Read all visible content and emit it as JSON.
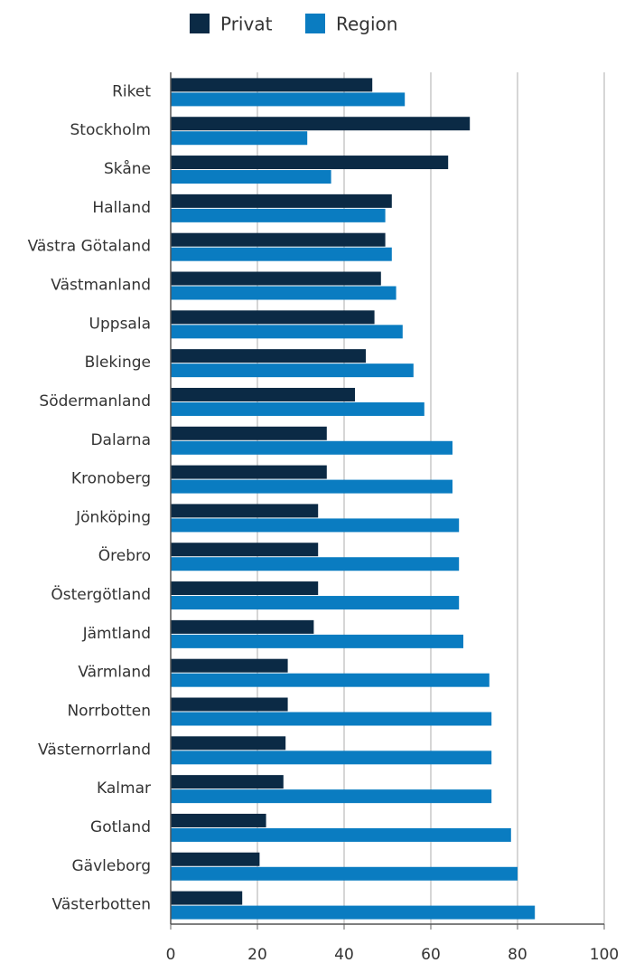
{
  "chart_data": {
    "type": "hbar",
    "categories": [
      "Riket",
      "Stockholm",
      "Skåne",
      "Halland",
      "Västra Götaland",
      "Västmanland",
      "Uppsala",
      "Blekinge",
      "Södermanland",
      "Dalarna",
      "Kronoberg",
      "Jönköping",
      "Örebro",
      "Östergötland",
      "Jämtland",
      "Värmland",
      "Norrbotten",
      "Västernorrland",
      "Kalmar",
      "Gotland",
      "Gävleborg",
      "Västerbotten"
    ],
    "series": [
      {
        "name": "Privat",
        "color": "#0b2a45",
        "values": [
          46.5,
          69,
          64,
          51,
          49.5,
          48.5,
          47,
          45,
          42.5,
          36,
          36,
          34,
          34,
          34,
          33,
          27,
          27,
          26.5,
          26,
          22,
          20.5,
          16.5
        ]
      },
      {
        "name": "Region",
        "color": "#0a7cc1",
        "values": [
          54,
          31.5,
          37,
          49.5,
          51,
          52,
          53.5,
          56,
          58.5,
          65,
          65,
          66.5,
          66.5,
          66.5,
          67.5,
          73.5,
          74,
          74,
          74,
          78.5,
          80,
          84
        ]
      }
    ],
    "xlim": [
      0,
      100
    ],
    "xticks": [
      0,
      20,
      40,
      60,
      80,
      100
    ],
    "grid": true,
    "legend": "top"
  }
}
